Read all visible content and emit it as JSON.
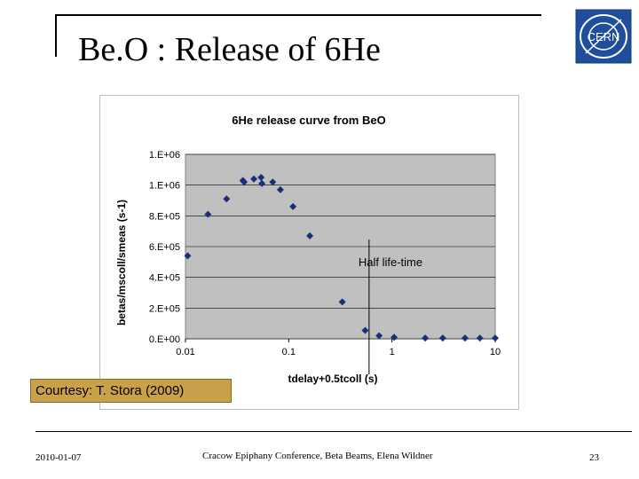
{
  "slide": {
    "title": "Be.O : Release of 6He",
    "courtesy": "Courtesy: T. Stora (2009)",
    "footer_date": "2010-01-07",
    "footer_conference": "Cracow Epiphany Conference, Beta Beams, Elena Wildner",
    "page_number": "23",
    "logo_text": "CERN"
  },
  "colors": {
    "plot_bg": "#c0c0c0",
    "marker": "#1a2f7a",
    "courtesy_bg": "#c9a14a",
    "logo_blue": "#1f4e9c"
  },
  "chart_data": {
    "type": "scatter",
    "title": "6He release curve from BeO",
    "xlabel": "tdelay+0.5tcoll (s)",
    "ylabel": "betas/mscoll/smeas (s-1)",
    "x_scale": "log",
    "xlim": [
      0.01,
      10
    ],
    "ylim": [
      0,
      1200000
    ],
    "x_ticks": [
      0.01,
      0.1,
      1,
      10
    ],
    "x_tick_labels": [
      "0.01",
      "0.1",
      "1",
      "10"
    ],
    "y_ticks": [
      0,
      200000,
      400000,
      600000,
      800000,
      1000000,
      1200000
    ],
    "y_tick_labels": [
      "0.E+00",
      "2.E+05",
      "4.E+05",
      "6.E+05",
      "8.E+05",
      "1.E+06",
      "1.E+06"
    ],
    "grid": true,
    "legend": "none",
    "series": [
      {
        "x": [
          0.0105,
          0.0165,
          0.025,
          0.036,
          0.037,
          0.046,
          0.054,
          0.055,
          0.07,
          0.083,
          0.11,
          0.16,
          0.33,
          0.55,
          0.75,
          1.05,
          2.1,
          3.1,
          5.1,
          7.1,
          10.0
        ],
        "y": [
          540000,
          810000,
          910000,
          1030000,
          1020000,
          1040000,
          1050000,
          1010000,
          1020000,
          970000,
          860000,
          670000,
          240000,
          55000,
          20000,
          10000,
          5000,
          5000,
          5000,
          5000,
          5000
        ]
      }
    ],
    "annotations": [
      {
        "text": "Half life-time",
        "x": 0.6
      }
    ]
  }
}
